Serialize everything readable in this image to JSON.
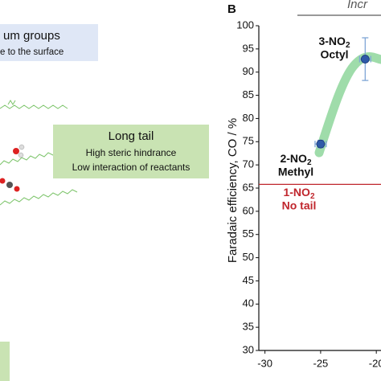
{
  "panel_label": "B",
  "header_text": "Incr",
  "left_panel": {
    "blue_box": [
      "um groups",
      "e to the surface"
    ],
    "green_box": {
      "title": "Long tail",
      "lines": [
        "High steric hindrance",
        "Low interaction of reactants"
      ]
    }
  },
  "chart_data": {
    "type": "scatter",
    "ylabel": "Faradaic efficiency, CO / %",
    "x": [
      -25,
      -21
    ],
    "series": [
      {
        "values": [
          74.5,
          92.8
        ],
        "y_errors": [
          0.8,
          4.6
        ],
        "x_errors": [
          0.5,
          0.5
        ],
        "color": "#2f5aa8",
        "error_color": "#7fa6d6"
      }
    ],
    "xlim": [
      -30.55,
      -19.58
    ],
    "ylim": [
      30,
      100
    ],
    "xticks": [
      -30,
      -25,
      -20
    ],
    "yticks": [
      30,
      35,
      40,
      45,
      50,
      55,
      60,
      65,
      70,
      75,
      80,
      85,
      90,
      95,
      100
    ],
    "reference_line": {
      "value": 65.8,
      "color": "#c0262d"
    },
    "annotations": [
      {
        "prefix": "3-NO",
        "sub": "2",
        "name": "Octyl"
      },
      {
        "prefix": "2-NO",
        "sub": "2",
        "name": "Methyl"
      },
      {
        "prefix": "1-NO",
        "sub": "2",
        "name": "No tail"
      }
    ]
  }
}
